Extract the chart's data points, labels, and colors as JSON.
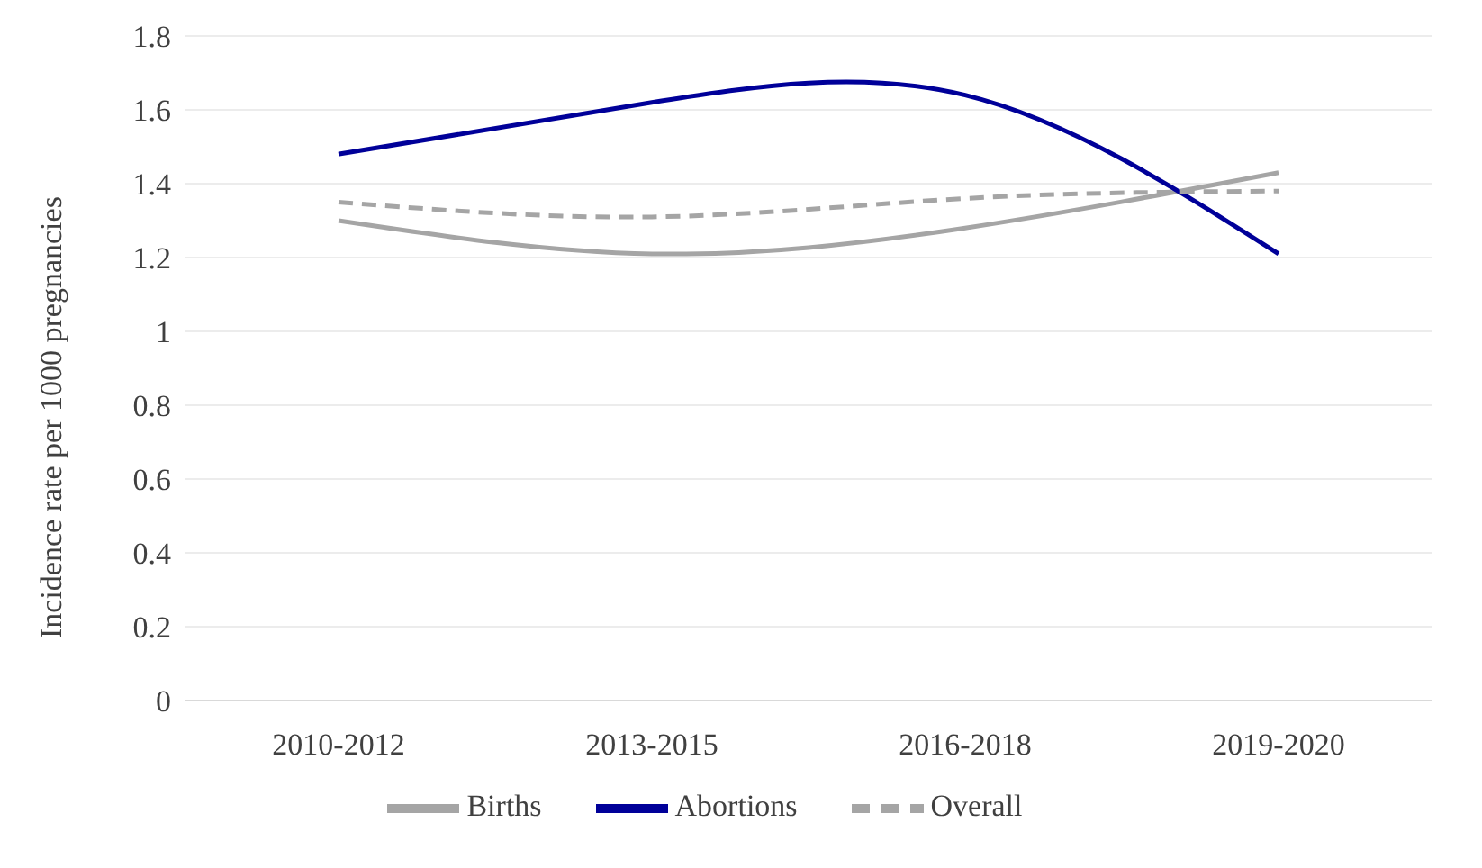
{
  "chart_data": {
    "type": "line",
    "ylabel": "Incidence rate per 1000 pregnancies",
    "categories": [
      "2010-2012",
      "2013-2015",
      "2016-2018",
      "2019-2020"
    ],
    "series": [
      {
        "name": "Births",
        "color": "#a5a5a5",
        "values": [
          1.3,
          1.21,
          1.28,
          1.43
        ]
      },
      {
        "name": "Abortions",
        "color": "#000099",
        "values": [
          1.48,
          1.62,
          1.64,
          1.21
        ]
      },
      {
        "name": "Overall",
        "color": "#a5a5a5",
        "values": [
          1.35,
          1.31,
          1.36,
          1.38
        ],
        "line_style": "dashed"
      }
    ],
    "ylim": [
      0,
      1.8
    ],
    "yticks": [
      0,
      0.2,
      0.4,
      0.6,
      0.8,
      1,
      1.2,
      1.4,
      1.6,
      1.8
    ],
    "grid": "y",
    "legend": "bottom",
    "marker": "none"
  }
}
